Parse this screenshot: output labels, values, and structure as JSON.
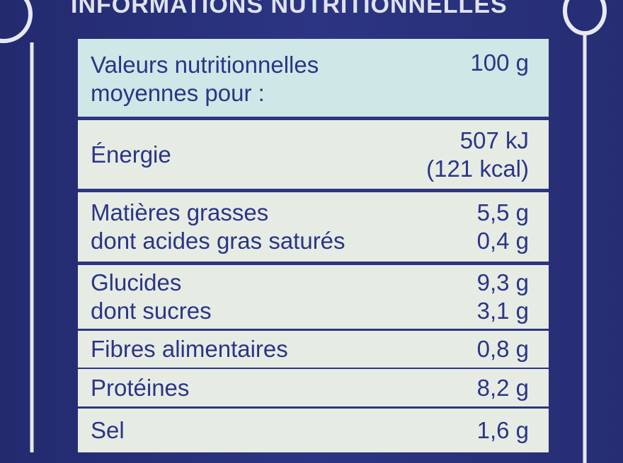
{
  "header": {
    "title": "INFORMATIONS NUTRITIONNELLES"
  },
  "table": {
    "head": {
      "labels": [
        "Valeurs nutritionnelles",
        "moyennes pour :"
      ],
      "values": [
        "100 g"
      ]
    },
    "rows": [
      {
        "labels": [
          "Énergie"
        ],
        "values": [
          "507 kJ",
          "(121 kcal)"
        ]
      },
      {
        "labels": [
          "Matières grasses",
          "dont acides gras saturés"
        ],
        "values": [
          "5,5 g",
          "0,4 g"
        ]
      },
      {
        "labels": [
          "Glucides",
          "dont sucres"
        ],
        "values": [
          "9,3 g",
          "3,1 g"
        ]
      },
      {
        "labels": [
          "Fibres alimentaires"
        ],
        "values": [
          "0,8 g"
        ]
      },
      {
        "labels": [
          "Protéines"
        ],
        "values": [
          "8,2 g"
        ]
      },
      {
        "labels": [
          "Sel"
        ],
        "values": [
          "1,6 g"
        ]
      }
    ]
  }
}
